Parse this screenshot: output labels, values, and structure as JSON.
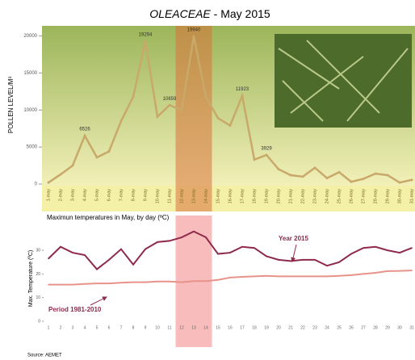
{
  "chart_data": [
    {
      "type": "line",
      "title_italic": "OLEACEAE",
      "title": " - May 2015",
      "y_label": "POLLEN LEVEL/M³",
      "categories": [
        "1-may",
        "2-may",
        "3-may",
        "4-may",
        "5-may",
        "6-may",
        "7-may",
        "8-may",
        "9-may",
        "10-may",
        "11-may",
        "12-may",
        "13-may",
        "14-may",
        "15-may",
        "16-may",
        "17-may",
        "18-may",
        "19-may",
        "20-may",
        "21-may",
        "22-may",
        "23-may",
        "24-may",
        "25-may",
        "26-may",
        "27-may",
        "28-may",
        "29-may",
        "30-may",
        "31-may"
      ],
      "series": [
        {
          "color": "#c8a96a",
          "values": [
            200,
            1300,
            2500,
            6526,
            3600,
            4400,
            8500,
            11800,
            19294,
            9100,
            10659,
            10000,
            19940,
            11800,
            8900,
            7900,
            11923,
            3300,
            3929,
            2000,
            1200,
            1000,
            2200,
            800,
            1600,
            300,
            700,
            1400,
            1200,
            200,
            560
          ],
          "value_labels": [
            null,
            null,
            null,
            "6526",
            null,
            null,
            null,
            null,
            "19294",
            null,
            "10659",
            null,
            "19940",
            null,
            null,
            null,
            "11923",
            null,
            "3929",
            null,
            null,
            null,
            null,
            null,
            null,
            null,
            null,
            null,
            null,
            null,
            null
          ]
        }
      ],
      "ylim": [
        0,
        20500
      ],
      "yticks": [
        0,
        5000,
        10000,
        15000,
        20000
      ],
      "highlight": [
        "12-may",
        "14-may"
      ],
      "highlight_color": "#d9733a"
    },
    {
      "type": "line",
      "title": "Maximun temperatures in May, by day (ºC)",
      "y_label": "Max. Temperature (ºC)",
      "source": "Source: AEMET",
      "categories": [
        "1",
        "2",
        "3",
        "4",
        "5",
        "6",
        "7",
        "8",
        "9",
        "10",
        "11",
        "12",
        "13",
        "14",
        "15",
        "16",
        "17",
        "18",
        "19",
        "20",
        "21",
        "22",
        "23",
        "24",
        "25",
        "26",
        "27",
        "28",
        "29",
        "30",
        "31"
      ],
      "series": [
        {
          "name": "Year 2015",
          "color": "#8e2a4a",
          "values": [
            26.5,
            31.5,
            29,
            28,
            22,
            26,
            30.5,
            24,
            30.5,
            33.5,
            34,
            35.5,
            38,
            35.5,
            28.5,
            29,
            31.5,
            31,
            27.5,
            26,
            25.5,
            26,
            26,
            23.5,
            25,
            28.5,
            31,
            31.5,
            30,
            29,
            31
          ]
        },
        {
          "name": "Period 1981-2010",
          "color": "#e8938a",
          "values": [
            15.5,
            15.5,
            15.5,
            15.8,
            16,
            16,
            16.3,
            16.5,
            16.5,
            16.8,
            16.8,
            16.5,
            17,
            17,
            17.5,
            18.5,
            18.8,
            19,
            19.2,
            19,
            19,
            19,
            19,
            19,
            19.2,
            19.5,
            20,
            20.5,
            21.2,
            21.3,
            21.5
          ]
        }
      ],
      "ylim": [
        0,
        42
      ],
      "yticks": [
        0,
        10,
        20,
        30
      ],
      "highlight": [
        "12",
        "14"
      ],
      "highlight_color": "#f7a0a0"
    }
  ]
}
